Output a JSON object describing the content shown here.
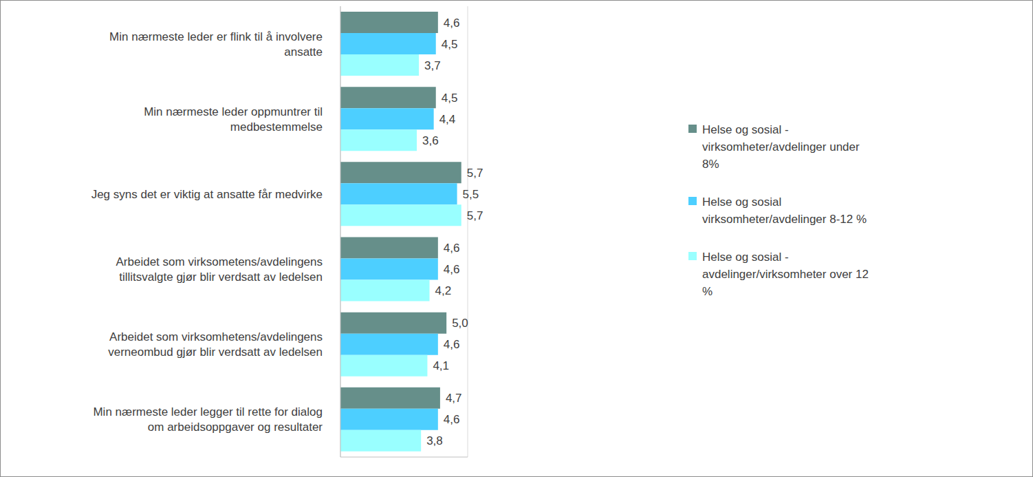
{
  "chart_data": {
    "type": "bar",
    "orientation": "horizontal",
    "categories": [
      "Min nærmeste leder er flink til å involvere ansatte",
      "Min nærmeste leder oppmuntrer til medbestemmelse",
      "Jeg syns det er viktig at ansatte får medvirke",
      "Arbeidet som virksometens/avdelingens tillitsvalgte gjør blir verdsatt av ledelsen",
      "Arbeidet som virksomhetens/avdelingens verneombud gjør blir verdsatt av ledelsen",
      "Min nærmeste leder legger til rette for dialog om arbeidsoppgaver og resultater"
    ],
    "series": [
      {
        "name": "Helse og sosial - virksomheter/avdelinger under 8%",
        "color": "#668f8a",
        "values": [
          4.6,
          4.5,
          5.7,
          4.6,
          5.0,
          4.7
        ],
        "value_labels": [
          "4,6",
          "4,5",
          "5,7",
          "4,6",
          "5,0",
          "4,7"
        ]
      },
      {
        "name": "Helse og sosial virksomheter/avdelinger 8-12 %",
        "color": "#4dcfff",
        "values": [
          4.5,
          4.4,
          5.5,
          4.6,
          4.6,
          4.6
        ],
        "value_labels": [
          "4,5",
          "4,4",
          "5,5",
          "4,6",
          "4,6",
          "4,6"
        ]
      },
      {
        "name": "Helse og sosial - avdelinger/virksomheter over 12 %",
        "color": "#99ffff",
        "values": [
          3.7,
          3.6,
          5.7,
          4.2,
          4.1,
          3.8
        ],
        "value_labels": [
          "3,7",
          "3,6",
          "5,7",
          "4,2",
          "4,1",
          "3,8"
        ]
      }
    ],
    "xlim": [
      0,
      6
    ],
    "xticks": [
      0,
      1,
      2,
      3,
      4,
      5,
      6
    ],
    "grid": true,
    "legend": "right",
    "data_labels": true,
    "tick_labels": false
  }
}
